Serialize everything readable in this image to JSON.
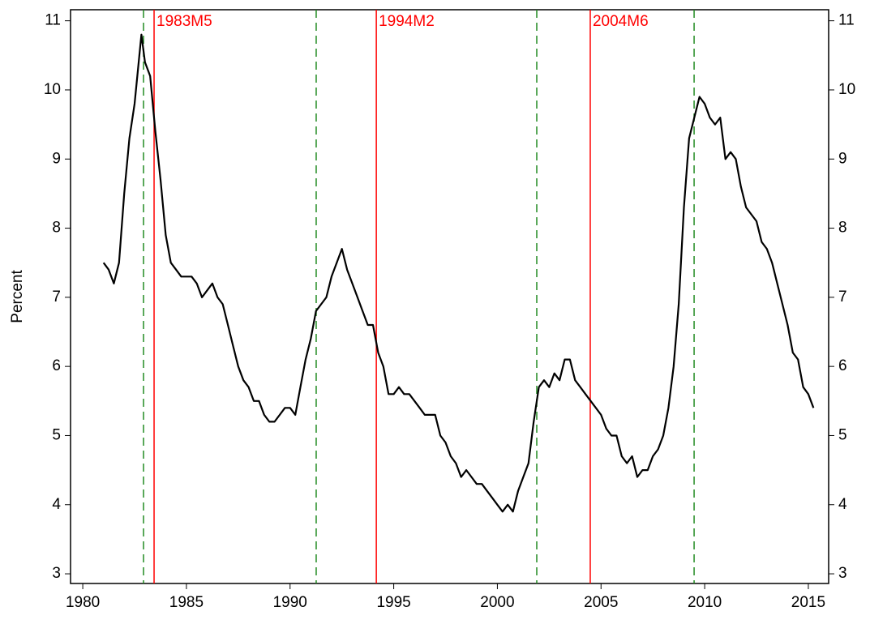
{
  "chart_data": {
    "type": "line",
    "ylabel": "Percent",
    "xlim": [
      1979.41,
      2015.98
    ],
    "xticks": [
      1980,
      1985,
      1990,
      1995,
      2000,
      2005,
      2010,
      2015
    ],
    "ylim": [
      2.86,
      11.16
    ],
    "yticks": [
      3,
      4,
      5,
      6,
      7,
      8,
      9,
      10,
      11
    ],
    "x": [
      1981.0,
      1981.25,
      1981.5,
      1981.75,
      1982.0,
      1982.25,
      1982.5,
      1982.83,
      1983.0,
      1983.25,
      1983.5,
      1983.75,
      1984.0,
      1984.25,
      1984.5,
      1984.75,
      1985.0,
      1985.25,
      1985.5,
      1985.75,
      1986.0,
      1986.25,
      1986.5,
      1986.75,
      1987.0,
      1987.25,
      1987.5,
      1987.75,
      1988.0,
      1988.25,
      1988.5,
      1988.75,
      1989.0,
      1989.25,
      1989.5,
      1989.75,
      1990.0,
      1990.25,
      1990.5,
      1990.75,
      1991.0,
      1991.25,
      1991.5,
      1991.75,
      1992.0,
      1992.25,
      1992.5,
      1992.75,
      1993.0,
      1993.25,
      1993.5,
      1993.75,
      1994.0,
      1994.25,
      1994.5,
      1994.75,
      1995.0,
      1995.25,
      1995.5,
      1995.75,
      1996.0,
      1996.25,
      1996.5,
      1996.75,
      1997.0,
      1997.25,
      1997.5,
      1997.75,
      1998.0,
      1998.25,
      1998.5,
      1998.75,
      1999.0,
      1999.25,
      1999.5,
      1999.75,
      2000.0,
      2000.25,
      2000.5,
      2000.75,
      2001.0,
      2001.25,
      2001.5,
      2001.75,
      2002.0,
      2002.25,
      2002.5,
      2002.75,
      2003.0,
      2003.25,
      2003.5,
      2003.75,
      2004.0,
      2004.25,
      2004.5,
      2004.75,
      2005.0,
      2005.25,
      2005.5,
      2005.75,
      2006.0,
      2006.25,
      2006.5,
      2006.75,
      2007.0,
      2007.25,
      2007.5,
      2007.75,
      2008.0,
      2008.25,
      2008.5,
      2008.75,
      2009.0,
      2009.25,
      2009.5,
      2009.75,
      2010.0,
      2010.25,
      2010.5,
      2010.75,
      2011.0,
      2011.25,
      2011.5,
      2011.75,
      2012.0,
      2012.25,
      2012.5,
      2012.75,
      2013.0,
      2013.25,
      2013.5,
      2013.75,
      2014.0,
      2014.25,
      2014.5,
      2014.75,
      2015.0,
      2015.25
    ],
    "series": [
      {
        "color": "#000000",
        "values": [
          7.5,
          7.4,
          7.2,
          7.5,
          8.5,
          9.3,
          9.8,
          10.8,
          10.4,
          10.2,
          9.4,
          8.7,
          7.9,
          7.5,
          7.4,
          7.3,
          7.3,
          7.3,
          7.2,
          7.0,
          7.1,
          7.2,
          7.0,
          6.9,
          6.6,
          6.3,
          6.0,
          5.8,
          5.7,
          5.5,
          5.5,
          5.3,
          5.2,
          5.2,
          5.3,
          5.4,
          5.4,
          5.3,
          5.7,
          6.1,
          6.4,
          6.8,
          6.9,
          7.0,
          7.3,
          7.5,
          7.7,
          7.4,
          7.2,
          7.0,
          6.8,
          6.6,
          6.6,
          6.2,
          6.0,
          5.6,
          5.6,
          5.7,
          5.6,
          5.6,
          5.5,
          5.4,
          5.3,
          5.3,
          5.3,
          5.0,
          4.9,
          4.7,
          4.6,
          4.4,
          4.5,
          4.4,
          4.3,
          4.3,
          4.2,
          4.1,
          4.0,
          3.9,
          4.0,
          3.9,
          4.2,
          4.4,
          4.6,
          5.2,
          5.7,
          5.8,
          5.7,
          5.9,
          5.8,
          6.1,
          6.1,
          5.8,
          5.7,
          5.6,
          5.5,
          5.4,
          5.3,
          5.1,
          5.0,
          5.0,
          4.7,
          4.6,
          4.7,
          4.4,
          4.5,
          4.5,
          4.7,
          4.8,
          5.0,
          5.4,
          6.0,
          6.9,
          8.3,
          9.3,
          9.6,
          9.9,
          9.8,
          9.6,
          9.5,
          9.6,
          9.0,
          9.1,
          9.0,
          8.6,
          8.3,
          8.2,
          8.1,
          7.8,
          7.7,
          7.5,
          7.2,
          6.9,
          6.6,
          6.2,
          6.1,
          5.7,
          5.6,
          5.4
        ]
      }
    ],
    "dashed_lines": {
      "color": "#228b22",
      "x": [
        1982.93,
        1991.26,
        2001.9,
        2009.49
      ]
    },
    "annotations": {
      "color": "#ff0000",
      "x": [
        1983.44,
        1994.16,
        2004.48
      ],
      "labels": [
        "1983M5",
        "1994M2",
        "2004M6"
      ]
    }
  }
}
